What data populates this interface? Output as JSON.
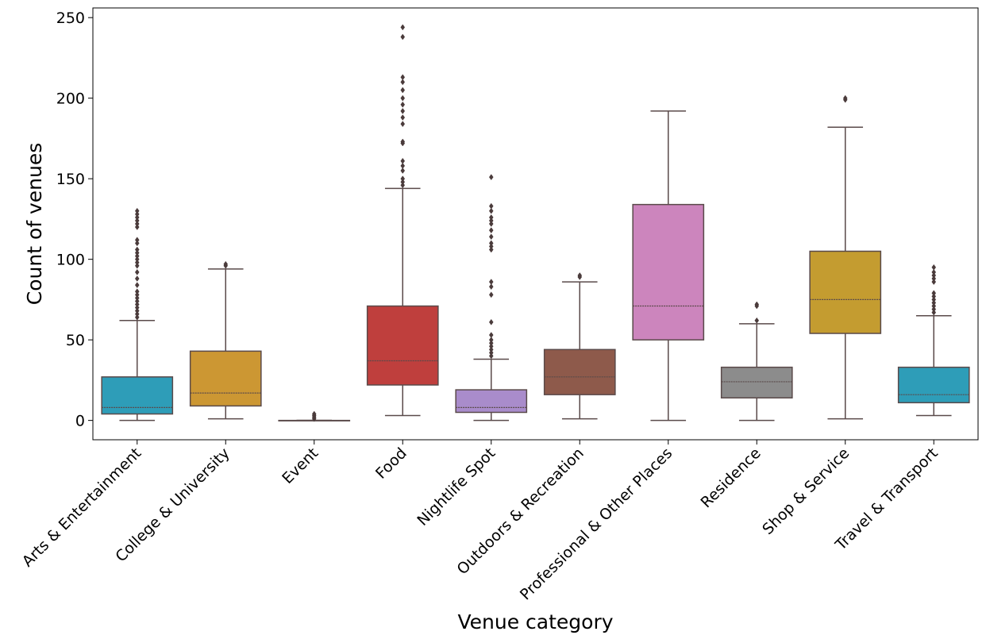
{
  "chart_data": {
    "type": "box",
    "title": "",
    "xlabel": "Venue category",
    "ylabel": "Count of venues",
    "ylim": [
      -12,
      256
    ],
    "yticks": [
      0,
      50,
      100,
      150,
      200,
      250
    ],
    "grid": false,
    "legend": "none",
    "categories": [
      {
        "name": "Arts & Entertainment",
        "color": "#2E9DB8",
        "whisker_low": 0,
        "q1": 4,
        "median": 8,
        "q3": 27,
        "whisker_high": 62,
        "outliers": [
          64,
          66,
          68,
          70,
          72,
          74,
          76,
          78,
          80,
          84,
          88,
          92,
          96,
          98,
          100,
          102,
          104,
          106,
          110,
          112,
          120,
          122,
          124,
          126,
          128,
          130
        ]
      },
      {
        "name": "College & University",
        "color": "#CC9733",
        "whisker_low": 1,
        "q1": 9,
        "median": 17,
        "q3": 43,
        "whisker_high": 94,
        "outliers": [
          96,
          97
        ]
      },
      {
        "name": "Event",
        "color": "#2E9DB8",
        "whisker_low": 0,
        "q1": 0,
        "median": 0,
        "q3": 0,
        "whisker_high": 0,
        "outliers": [
          1,
          2,
          3,
          4
        ]
      },
      {
        "name": "Food",
        "color": "#BF3F3D",
        "whisker_low": 3,
        "q1": 22,
        "median": 37,
        "q3": 71,
        "whisker_high": 144,
        "outliers": [
          146,
          148,
          150,
          155,
          158,
          161,
          172,
          173,
          184,
          188,
          192,
          196,
          200,
          205,
          210,
          213,
          238,
          244
        ]
      },
      {
        "name": "Nightlife Spot",
        "color": "#A98CCB",
        "whisker_low": 0,
        "q1": 5,
        "median": 8,
        "q3": 19,
        "whisker_high": 38,
        "outliers": [
          40,
          42,
          44,
          46,
          48,
          50,
          53,
          61,
          78,
          83,
          86,
          106,
          108,
          110,
          114,
          118,
          122,
          124,
          126,
          130,
          133,
          151
        ]
      },
      {
        "name": "Outdoors & Recreation",
        "color": "#8E5A4B",
        "whisker_low": 1,
        "q1": 16,
        "median": 27,
        "q3": 44,
        "whisker_high": 86,
        "outliers": [
          89,
          90
        ]
      },
      {
        "name": "Professional & Other Places",
        "color": "#CC85BD",
        "whisker_low": 0,
        "q1": 50,
        "median": 71,
        "q3": 134,
        "whisker_high": 192,
        "outliers": []
      },
      {
        "name": "Residence",
        "color": "#8C8C8C",
        "whisker_low": 0,
        "q1": 14,
        "median": 24,
        "q3": 33,
        "whisker_high": 60,
        "outliers": [
          62,
          71,
          72
        ]
      },
      {
        "name": "Shop & Service",
        "color": "#C49C30",
        "whisker_low": 1,
        "q1": 54,
        "median": 75,
        "q3": 105,
        "whisker_high": 182,
        "outliers": [
          199,
          200
        ]
      },
      {
        "name": "Travel & Transport",
        "color": "#2E9DB8",
        "whisker_low": 3,
        "q1": 11,
        "median": 16,
        "q3": 33,
        "whisker_high": 65,
        "outliers": [
          67,
          69,
          71,
          73,
          75,
          77,
          79,
          86,
          88,
          90,
          92,
          95
        ]
      }
    ]
  }
}
